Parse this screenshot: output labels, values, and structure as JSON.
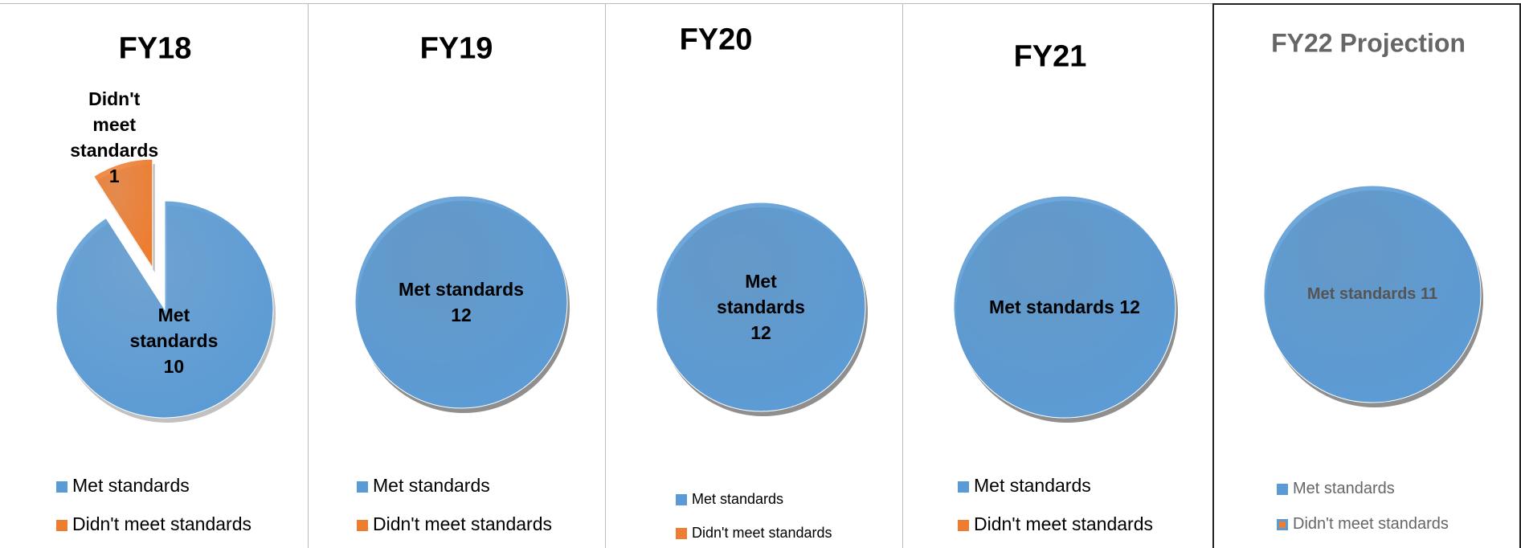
{
  "chart_data": [
    {
      "type": "pie",
      "title": "FY18",
      "categories": [
        "Met standards",
        "Didn't meet standards"
      ],
      "values": [
        10,
        1
      ],
      "colors": [
        "#5b9bd5",
        "#ed7d31"
      ]
    },
    {
      "type": "pie",
      "title": "FY19",
      "categories": [
        "Met standards",
        "Didn't meet standards"
      ],
      "values": [
        12,
        0
      ],
      "colors": [
        "#5b9bd5",
        "#ed7d31"
      ]
    },
    {
      "type": "pie",
      "title": "FY20",
      "categories": [
        "Met standards",
        "Didn't meet standards"
      ],
      "values": [
        12,
        0
      ],
      "colors": [
        "#5b9bd5",
        "#ed7d31"
      ]
    },
    {
      "type": "pie",
      "title": "FY21",
      "categories": [
        "Met standards",
        "Didn't meet standards"
      ],
      "values": [
        12,
        0
      ],
      "colors": [
        "#5b9bd5",
        "#ed7d31"
      ]
    },
    {
      "type": "pie",
      "title": "FY22 Projection",
      "categories": [
        "Met standards",
        "Didn't meet standards"
      ],
      "values": [
        11,
        0
      ],
      "colors": [
        "#5b9bd5",
        "#ed7d31"
      ]
    }
  ]
}
